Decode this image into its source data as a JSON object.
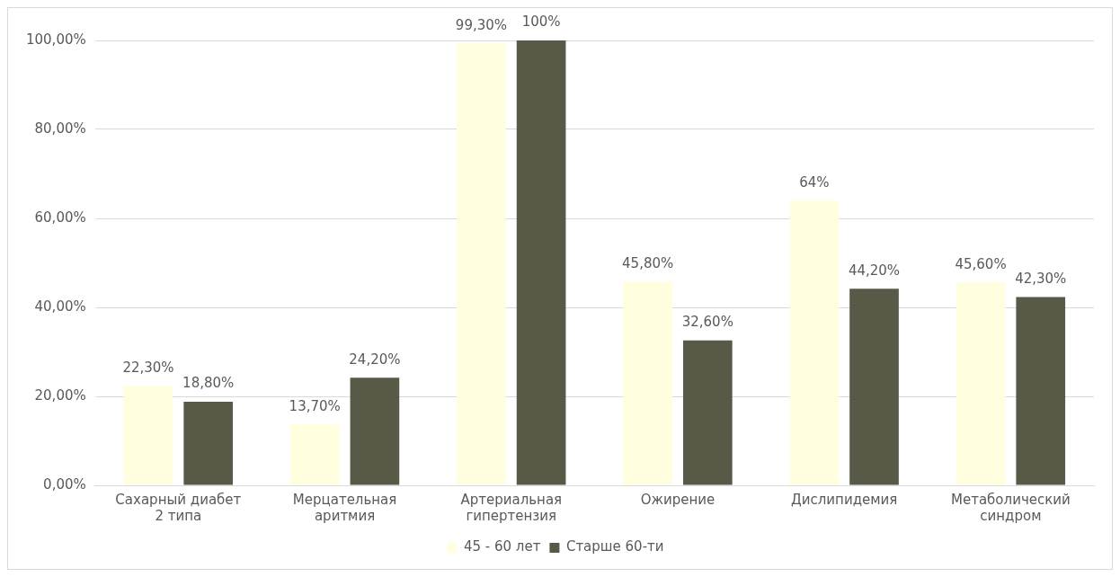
{
  "chart_data": {
    "type": "bar",
    "categories": [
      "Сахарный диабет 2 типа",
      "Мерцательная аритмия",
      "Артериальная гипертензия",
      "Ожирение",
      "Дислипидемия",
      "Метаболический синдром"
    ],
    "series": [
      {
        "name": "45 - 60 лет",
        "color": "#ffffe0",
        "values": [
          22.3,
          13.7,
          99.3,
          45.8,
          64,
          45.6
        ],
        "value_labels": [
          "22,30%",
          "13,70%",
          "99,30%",
          "45,80%",
          "64%",
          "45,60%"
        ]
      },
      {
        "name": "Старше 60-ти",
        "color": "#595947",
        "values": [
          18.8,
          24.2,
          100,
          32.6,
          44.2,
          42.3
        ],
        "value_labels": [
          "18,80%",
          "24,20%",
          "100%",
          "32,60%",
          "44,20%",
          "42,30%"
        ]
      }
    ],
    "ylim": [
      0,
      100
    ],
    "yticks": [
      {
        "value": 0,
        "label": "0,00%"
      },
      {
        "value": 20,
        "label": "20,00%"
      },
      {
        "value": 40,
        "label": "40,00%"
      },
      {
        "value": 60,
        "label": "60,00%"
      },
      {
        "value": 80,
        "label": "80,00%"
      },
      {
        "value": 100,
        "label": "100,00%"
      }
    ],
    "grid": "y",
    "legend": "bottom"
  }
}
